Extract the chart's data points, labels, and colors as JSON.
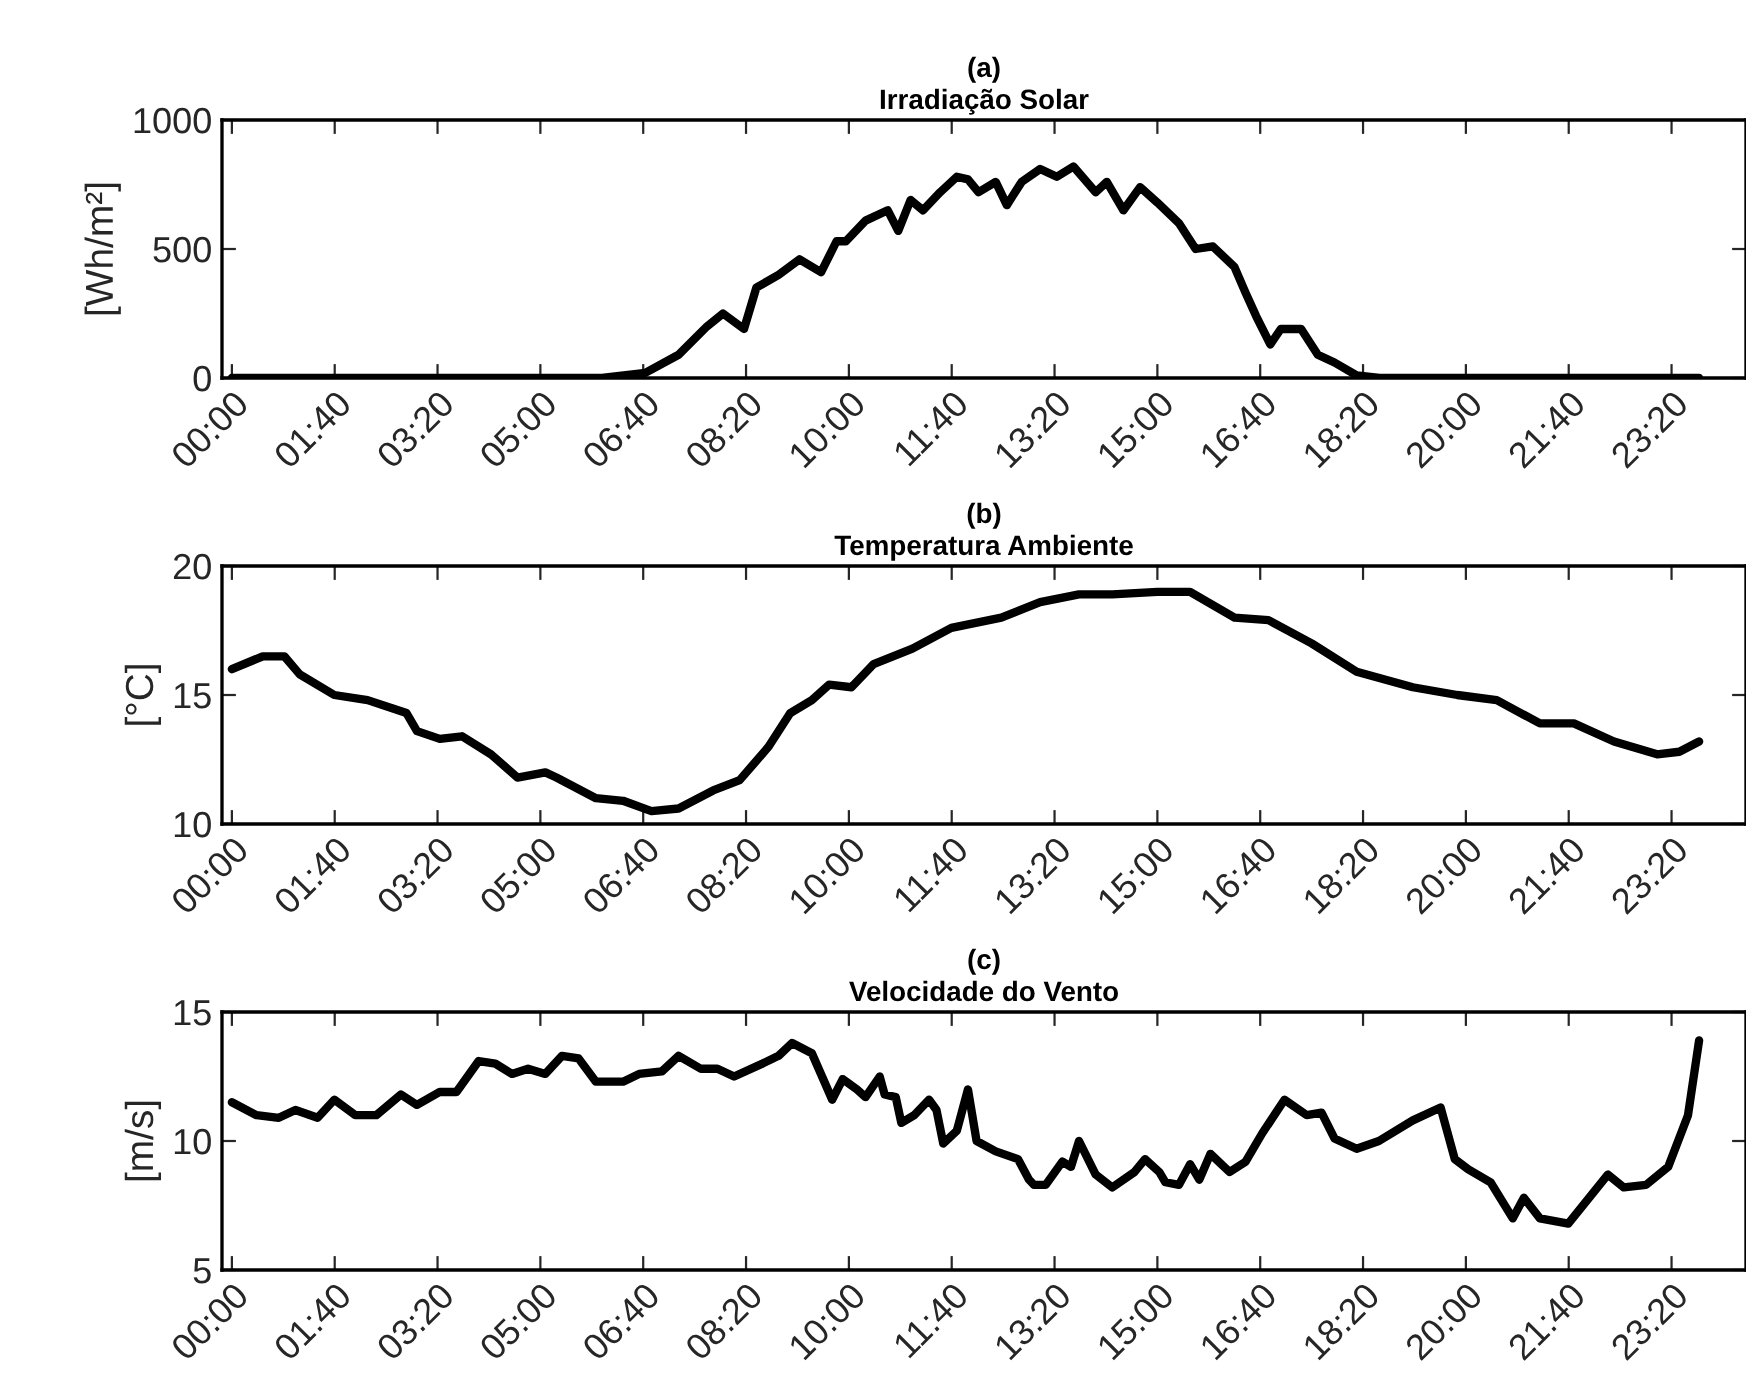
{
  "chart_data": [
    {
      "type": "line",
      "title": "(a)",
      "subtitle": "Irradiação Solar",
      "ylabel": "[Wh/m²]",
      "xlim": [
        -0.16,
        24.54
      ],
      "ylim": [
        0,
        1000
      ],
      "yticks": [
        0,
        500,
        1000
      ],
      "xticks": [
        {
          "value": 0,
          "label": "00:00"
        },
        {
          "value": 1.6667,
          "label": "01:40"
        },
        {
          "value": 3.3333,
          "label": "03:20"
        },
        {
          "value": 5,
          "label": "05:00"
        },
        {
          "value": 6.6667,
          "label": "06:40"
        },
        {
          "value": 8.3333,
          "label": "08:20"
        },
        {
          "value": 10,
          "label": "10:00"
        },
        {
          "value": 11.6667,
          "label": "11:40"
        },
        {
          "value": 13.3333,
          "label": "13:20"
        },
        {
          "value": 15,
          "label": "15:00"
        },
        {
          "value": 16.6667,
          "label": "16:40"
        },
        {
          "value": 18.3333,
          "label": "18:20"
        },
        {
          "value": 20,
          "label": "20:00"
        },
        {
          "value": 21.6667,
          "label": "21:40"
        },
        {
          "value": 23.3333,
          "label": "23:20"
        }
      ],
      "series": [
        {
          "color": "#000000",
          "x": [
            0,
            6.0,
            6.7,
            7.24,
            7.7,
            7.96,
            8.3,
            8.5,
            8.86,
            9.2,
            9.55,
            9.8,
            9.95,
            10.27,
            10.63,
            10.8,
            11.0,
            11.2,
            11.48,
            11.75,
            11.93,
            12.1,
            12.38,
            12.56,
            12.8,
            13.1,
            13.37,
            13.64,
            14.0,
            14.18,
            14.45,
            14.72,
            15.0,
            15.35,
            15.62,
            15.9,
            16.25,
            16.43,
            16.6,
            16.83,
            17.0,
            17.33,
            17.6,
            17.87,
            18.23,
            18.6,
            23.78
          ],
          "values": [
            0,
            0,
            20,
            90,
            200,
            250,
            190,
            350,
            400,
            460,
            410,
            530,
            530,
            610,
            650,
            570,
            690,
            650,
            720,
            780,
            770,
            720,
            760,
            670,
            760,
            810,
            780,
            820,
            720,
            760,
            650,
            740,
            680,
            600,
            500,
            510,
            430,
            330,
            240,
            130,
            190,
            190,
            90,
            60,
            10,
            0,
            0
          ]
        }
      ]
    },
    {
      "type": "line",
      "title": "(b)",
      "subtitle": "Temperatura Ambiente",
      "ylabel": "[°C]",
      "xlim": [
        -0.16,
        24.54
      ],
      "ylim": [
        10,
        20
      ],
      "yticks": [
        10,
        15,
        20
      ],
      "xticks": [
        {
          "value": 0,
          "label": "00:00"
        },
        {
          "value": 1.6667,
          "label": "01:40"
        },
        {
          "value": 3.3333,
          "label": "03:20"
        },
        {
          "value": 5,
          "label": "05:00"
        },
        {
          "value": 6.6667,
          "label": "06:40"
        },
        {
          "value": 8.3333,
          "label": "08:20"
        },
        {
          "value": 10,
          "label": "10:00"
        },
        {
          "value": 11.6667,
          "label": "11:40"
        },
        {
          "value": 13.3333,
          "label": "13:20"
        },
        {
          "value": 15,
          "label": "15:00"
        },
        {
          "value": 16.6667,
          "label": "16:40"
        },
        {
          "value": 18.3333,
          "label": "18:20"
        },
        {
          "value": 20,
          "label": "20:00"
        },
        {
          "value": 21.6667,
          "label": "21:40"
        },
        {
          "value": 23.3333,
          "label": "23:20"
        }
      ],
      "series": [
        {
          "color": "#000000",
          "x": [
            0,
            0.5,
            0.85,
            1.1,
            1.66,
            2.2,
            2.83,
            3.0,
            3.37,
            3.73,
            4.2,
            4.63,
            5.08,
            5.26,
            5.9,
            6.34,
            6.8,
            7.24,
            7.8,
            8.23,
            8.7,
            9.05,
            9.4,
            9.68,
            10.04,
            10.4,
            11.03,
            11.66,
            12.47,
            13.1,
            13.73,
            14.27,
            15.0,
            15.53,
            16.25,
            16.8,
            17.5,
            18.23,
            19.14,
            19.86,
            20.5,
            21.2,
            21.75,
            22.4,
            23.1,
            23.46,
            23.78
          ],
          "values": [
            16.0,
            16.5,
            16.5,
            15.8,
            15.0,
            14.8,
            14.3,
            13.6,
            13.3,
            13.4,
            12.7,
            11.8,
            12.0,
            11.8,
            11.0,
            10.9,
            10.5,
            10.6,
            11.3,
            11.7,
            13.0,
            14.3,
            14.8,
            15.4,
            15.3,
            16.2,
            16.8,
            17.6,
            18.0,
            18.6,
            18.9,
            18.9,
            19.0,
            19.0,
            18.0,
            17.9,
            17.0,
            15.9,
            15.3,
            15.0,
            14.8,
            13.9,
            13.9,
            13.2,
            12.7,
            12.8,
            13.2
          ]
        }
      ]
    },
    {
      "type": "line",
      "title": "(c)",
      "subtitle": "Velocidade do Vento",
      "ylabel": "[m/s]",
      "xlim": [
        -0.16,
        24.54
      ],
      "ylim": [
        5,
        15
      ],
      "yticks": [
        5,
        10,
        15
      ],
      "xticks": [
        {
          "value": 0,
          "label": "00:00"
        },
        {
          "value": 1.6667,
          "label": "01:40"
        },
        {
          "value": 3.3333,
          "label": "03:20"
        },
        {
          "value": 5,
          "label": "05:00"
        },
        {
          "value": 6.6667,
          "label": "06:40"
        },
        {
          "value": 8.3333,
          "label": "08:20"
        },
        {
          "value": 10,
          "label": "10:00"
        },
        {
          "value": 11.6667,
          "label": "11:40"
        },
        {
          "value": 13.3333,
          "label": "13:20"
        },
        {
          "value": 15,
          "label": "15:00"
        },
        {
          "value": 16.6667,
          "label": "16:40"
        },
        {
          "value": 18.3333,
          "label": "18:20"
        },
        {
          "value": 20,
          "label": "20:00"
        },
        {
          "value": 21.6667,
          "label": "21:40"
        },
        {
          "value": 23.3333,
          "label": "23:20"
        }
      ],
      "series": [
        {
          "color": "#000000",
          "x": [
            0,
            0.4,
            0.76,
            1.03,
            1.39,
            1.66,
            2.0,
            2.34,
            2.74,
            3.0,
            3.37,
            3.64,
            4.0,
            4.27,
            4.54,
            4.8,
            5.08,
            5.35,
            5.62,
            5.9,
            6.34,
            6.6,
            6.97,
            7.24,
            7.6,
            7.87,
            8.14,
            8.6,
            8.86,
            9.08,
            9.4,
            9.73,
            9.9,
            10.13,
            10.27,
            10.5,
            10.58,
            10.76,
            10.85,
            11.06,
            11.3,
            11.42,
            11.53,
            11.75,
            11.93,
            12.07,
            12.38,
            12.74,
            12.92,
            13.0,
            13.19,
            13.46,
            13.6,
            13.73,
            14.0,
            14.27,
            14.63,
            14.8,
            15.03,
            15.13,
            15.35,
            15.53,
            15.68,
            15.86,
            16.17,
            16.43,
            16.7,
            17.06,
            17.42,
            17.66,
            17.87,
            18.23,
            18.59,
            19.14,
            19.59,
            19.82,
            20.04,
            20.4,
            20.76,
            20.94,
            21.2,
            21.66,
            22.3,
            22.56,
            22.92,
            23.28,
            23.6,
            23.78
          ],
          "values": [
            11.5,
            11.0,
            10.9,
            11.2,
            10.9,
            11.6,
            11.0,
            11.0,
            11.8,
            11.4,
            11.9,
            11.9,
            13.1,
            13.0,
            12.6,
            12.8,
            12.6,
            13.3,
            13.2,
            12.3,
            12.3,
            12.6,
            12.7,
            13.3,
            12.8,
            12.8,
            12.5,
            13.0,
            13.3,
            13.8,
            13.4,
            11.6,
            12.4,
            12.0,
            11.7,
            12.5,
            11.8,
            11.7,
            10.7,
            11.0,
            11.6,
            11.2,
            9.9,
            10.4,
            12.0,
            10.0,
            9.6,
            9.3,
            8.5,
            8.3,
            8.3,
            9.2,
            9.0,
            10.0,
            8.7,
            8.2,
            8.8,
            9.3,
            8.8,
            8.4,
            8.3,
            9.1,
            8.5,
            9.5,
            8.8,
            9.2,
            10.3,
            11.6,
            11.0,
            11.1,
            10.1,
            9.7,
            10.0,
            10.8,
            11.3,
            9.3,
            8.9,
            8.4,
            7.0,
            7.8,
            7.0,
            6.8,
            8.7,
            8.2,
            8.3,
            9.0,
            11.0,
            13.9
          ]
        }
      ]
    }
  ]
}
